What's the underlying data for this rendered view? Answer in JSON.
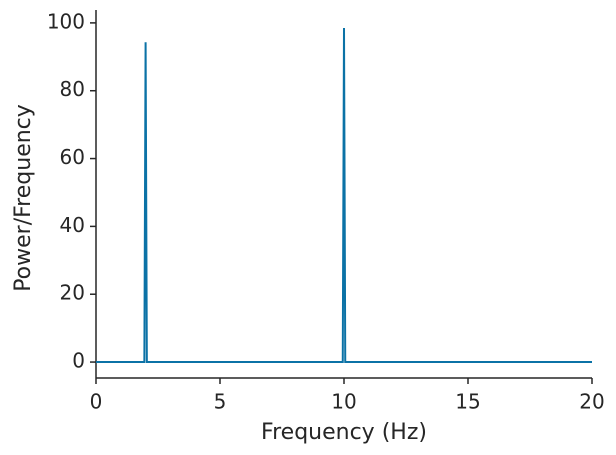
{
  "chart_data": {
    "type": "line",
    "x_label": "Frequency (Hz)",
    "y_label": "Power/Frequency",
    "x": [
      0,
      1.95,
      2,
      2.05,
      9.95,
      10,
      10.05,
      20
    ],
    "series": [
      {
        "color": "#0b72a6",
        "values": [
          0,
          0,
          94.3,
          0,
          0,
          98.5,
          0,
          0
        ]
      }
    ],
    "xlim": [
      0,
      20
    ],
    "xticks": [
      0,
      5,
      10,
      15,
      20
    ],
    "ylim": [
      -4.7,
      103.8
    ],
    "yticks": [
      0,
      20,
      40,
      60,
      80,
      100
    ],
    "grid": false
  }
}
